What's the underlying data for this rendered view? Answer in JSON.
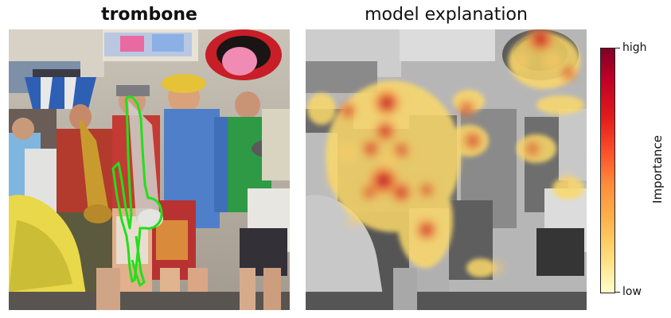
{
  "left_panel": {
    "title": "trombone",
    "outline_color": "#22e01a"
  },
  "right_panel": {
    "title": "model explanation"
  },
  "colorbar": {
    "label": "Importance",
    "high_label": "high",
    "low_label": "low",
    "colors": [
      "#800026",
      "#e31a1c",
      "#fd8d3c",
      "#fed976",
      "#ffffcc"
    ]
  }
}
